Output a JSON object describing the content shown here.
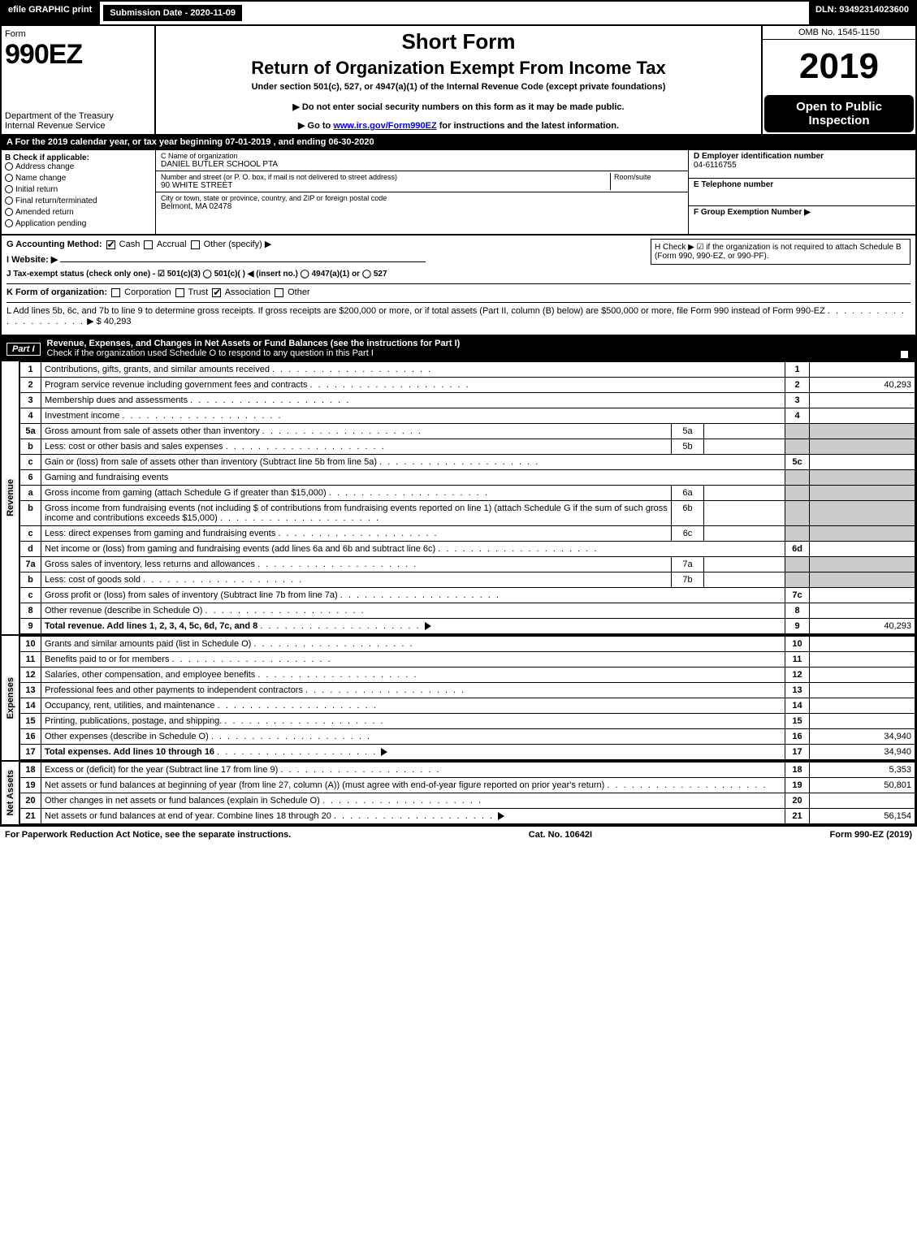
{
  "topbar": {
    "efile": "efile GRAPHIC print",
    "submission": "Submission Date - 2020-11-09",
    "dln": "DLN: 93492314023600"
  },
  "header": {
    "form_word": "Form",
    "form_number": "990EZ",
    "dept1": "Department of the Treasury",
    "dept2": "Internal Revenue Service",
    "short_form": "Short Form",
    "title": "Return of Organization Exempt From Income Tax",
    "under": "Under section 501(c), 527, or 4947(a)(1) of the Internal Revenue Code (except private foundations)",
    "dne": "▶ Do not enter social security numbers on this form as it may be made public.",
    "goto_pre": "▶ Go to ",
    "goto_link": "www.irs.gov/Form990EZ",
    "goto_post": " for instructions and the latest information.",
    "omb": "OMB No. 1545-1150",
    "year": "2019",
    "open": "Open to Public Inspection"
  },
  "lineA": "A For the 2019 calendar year, or tax year beginning 07-01-2019 , and ending 06-30-2020",
  "boxB": {
    "title": "B  Check if applicable:",
    "items": [
      "Address change",
      "Name change",
      "Initial return",
      "Final return/terminated",
      "Amended return",
      "Application pending"
    ]
  },
  "boxC": {
    "name_lbl": "C Name of organization",
    "name": "DANIEL BUTLER SCHOOL PTA",
    "addr_lbl": "Number and street (or P. O. box, if mail is not delivered to street address)",
    "room_lbl": "Room/suite",
    "addr": "90 WHITE STREET",
    "city_lbl": "City or town, state or province, country, and ZIP or foreign postal code",
    "city": "Belmont, MA  02478"
  },
  "boxD": {
    "lbl": "D Employer identification number",
    "val": "04-6116755"
  },
  "boxE": {
    "lbl": "E Telephone number",
    "val": ""
  },
  "boxF": {
    "lbl": "F Group Exemption Number  ▶",
    "val": ""
  },
  "lineG": {
    "lbl": "G Accounting Method:",
    "opts": [
      "Cash",
      "Accrual",
      "Other (specify) ▶"
    ],
    "checked": 0
  },
  "lineH": "H  Check ▶ ☑ if the organization is not required to attach Schedule B (Form 990, 990-EZ, or 990-PF).",
  "lineI": "I Website: ▶",
  "lineJ": "J Tax-exempt status (check only one) - ☑ 501(c)(3)  ◯ 501(c)(  ) ◀ (insert no.)  ◯ 4947(a)(1) or  ◯ 527",
  "lineK": {
    "lbl": "K Form of organization:",
    "opts": [
      "Corporation",
      "Trust",
      "Association",
      "Other"
    ],
    "checked": 2
  },
  "lineL": {
    "text": "L Add lines 5b, 6c, and 7b to line 9 to determine gross receipts. If gross receipts are $200,000 or more, or if total assets (Part II, column (B) below) are $500,000 or more, file Form 990 instead of Form 990-EZ",
    "amount": "▶ $ 40,293"
  },
  "part1": {
    "label": "Part I",
    "title": "Revenue, Expenses, and Changes in Net Assets or Fund Balances (see the instructions for Part I)",
    "sub": "Check if the organization used Schedule O to respond to any question in this Part I",
    "sub_checked": true
  },
  "sections": {
    "revenue": "Revenue",
    "expenses": "Expenses",
    "netassets": "Net Assets"
  },
  "rows": [
    {
      "n": "1",
      "d": "Contributions, gifts, grants, and similar amounts received",
      "rn": "1",
      "amt": ""
    },
    {
      "n": "2",
      "d": "Program service revenue including government fees and contracts",
      "rn": "2",
      "amt": "40,293"
    },
    {
      "n": "3",
      "d": "Membership dues and assessments",
      "rn": "3",
      "amt": ""
    },
    {
      "n": "4",
      "d": "Investment income",
      "rn": "4",
      "amt": ""
    },
    {
      "n": "5a",
      "d": "Gross amount from sale of assets other than inventory",
      "mini": "5a",
      "minival": "",
      "shadeR": true
    },
    {
      "n": "b",
      "d": "Less: cost or other basis and sales expenses",
      "mini": "5b",
      "minival": "",
      "shadeR": true
    },
    {
      "n": "c",
      "d": "Gain or (loss) from sale of assets other than inventory (Subtract line 5b from line 5a)",
      "rn": "5c",
      "amt": ""
    },
    {
      "n": "6",
      "d": "Gaming and fundraising events",
      "shadeR": true,
      "noRn": true
    },
    {
      "n": "a",
      "d": "Gross income from gaming (attach Schedule G if greater than $15,000)",
      "mini": "6a",
      "minival": "",
      "shadeR": true
    },
    {
      "n": "b",
      "d": "Gross income from fundraising events (not including $                     of contributions from fundraising events reported on line 1) (attach Schedule G if the sum of such gross income and contributions exceeds $15,000)",
      "mini": "6b",
      "minival": "",
      "shadeR": true
    },
    {
      "n": "c",
      "d": "Less: direct expenses from gaming and fundraising events",
      "mini": "6c",
      "minival": "",
      "shadeR": true
    },
    {
      "n": "d",
      "d": "Net income or (loss) from gaming and fundraising events (add lines 6a and 6b and subtract line 6c)",
      "rn": "6d",
      "amt": ""
    },
    {
      "n": "7a",
      "d": "Gross sales of inventory, less returns and allowances",
      "mini": "7a",
      "minival": "",
      "shadeR": true
    },
    {
      "n": "b",
      "d": "Less: cost of goods sold",
      "mini": "7b",
      "minival": "",
      "shadeR": true
    },
    {
      "n": "c",
      "d": "Gross profit or (loss) from sales of inventory (Subtract line 7b from line 7a)",
      "rn": "7c",
      "amt": ""
    },
    {
      "n": "8",
      "d": "Other revenue (describe in Schedule O)",
      "rn": "8",
      "amt": ""
    },
    {
      "n": "9",
      "d": "Total revenue. Add lines 1, 2, 3, 4, 5c, 6d, 7c, and 8",
      "rn": "9",
      "amt": "40,293",
      "bold": true,
      "arrow": true
    }
  ],
  "rows_exp": [
    {
      "n": "10",
      "d": "Grants and similar amounts paid (list in Schedule O)",
      "rn": "10",
      "amt": ""
    },
    {
      "n": "11",
      "d": "Benefits paid to or for members",
      "rn": "11",
      "amt": ""
    },
    {
      "n": "12",
      "d": "Salaries, other compensation, and employee benefits",
      "rn": "12",
      "amt": ""
    },
    {
      "n": "13",
      "d": "Professional fees and other payments to independent contractors",
      "rn": "13",
      "amt": ""
    },
    {
      "n": "14",
      "d": "Occupancy, rent, utilities, and maintenance",
      "rn": "14",
      "amt": ""
    },
    {
      "n": "15",
      "d": "Printing, publications, postage, and shipping.",
      "rn": "15",
      "amt": ""
    },
    {
      "n": "16",
      "d": "Other expenses (describe in Schedule O)",
      "rn": "16",
      "amt": "34,940"
    },
    {
      "n": "17",
      "d": "Total expenses. Add lines 10 through 16",
      "rn": "17",
      "amt": "34,940",
      "bold": true,
      "arrow": true
    }
  ],
  "rows_net": [
    {
      "n": "18",
      "d": "Excess or (deficit) for the year (Subtract line 17 from line 9)",
      "rn": "18",
      "amt": "5,353"
    },
    {
      "n": "19",
      "d": "Net assets or fund balances at beginning of year (from line 27, column (A)) (must agree with end-of-year figure reported on prior year's return)",
      "rn": "19",
      "amt": "50,801"
    },
    {
      "n": "20",
      "d": "Other changes in net assets or fund balances (explain in Schedule O)",
      "rn": "20",
      "amt": ""
    },
    {
      "n": "21",
      "d": "Net assets or fund balances at end of year. Combine lines 18 through 20",
      "rn": "21",
      "amt": "56,154",
      "arrow": true
    }
  ],
  "footer": {
    "left": "For Paperwork Reduction Act Notice, see the separate instructions.",
    "mid": "Cat. No. 10642I",
    "right": "Form 990-EZ (2019)"
  }
}
